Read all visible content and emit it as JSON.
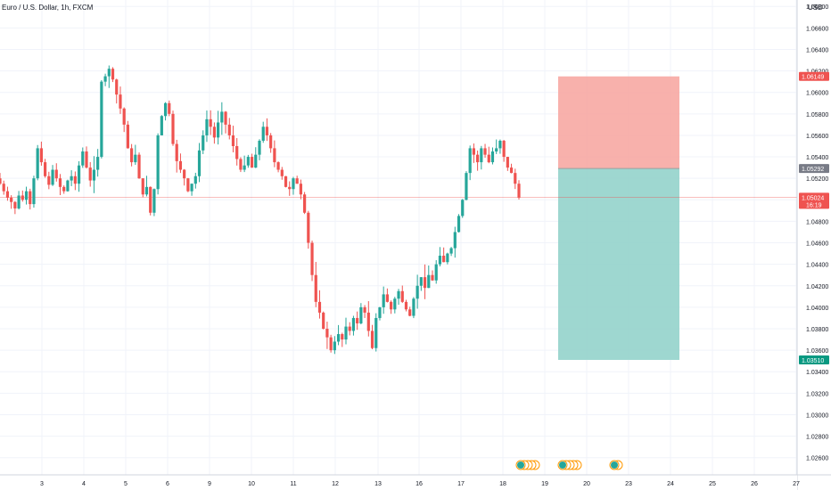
{
  "header": {
    "symbol_title": "Euro / U.S. Dollar, 1h, FXCM"
  },
  "chart_data": {
    "type": "candlestick",
    "title": "Euro / U.S. Dollar, 1h, FXCM",
    "y_unit": "USD",
    "ylim": [
      1.0244,
      1.0686
    ],
    "y_ticks": [
      "1.06800",
      "1.06600",
      "1.06400",
      "1.06200",
      "1.06000",
      "1.05800",
      "1.05600",
      "1.05400",
      "1.05200",
      "1.05000",
      "1.04800",
      "1.04600",
      "1.04400",
      "1.04200",
      "1.04000",
      "1.03800",
      "1.03600",
      "1.03400",
      "1.03200",
      "1.03000",
      "1.02800",
      "1.02600"
    ],
    "x_ticks": [
      "3",
      "4",
      "5",
      "6",
      "9",
      "10",
      "11",
      "12",
      "13",
      "16",
      "17",
      "18",
      "19",
      "20",
      "23",
      "24",
      "25",
      "26",
      "27"
    ],
    "grid": true,
    "colors": {
      "up": "#26a69a",
      "down": "#ef5350",
      "stop_zone": "#f7a39e",
      "target_zone": "#93d3cb",
      "entry_line": "#9e9e9e",
      "price_line": "#ef5350"
    },
    "candle_close_path": [
      1.0515,
      1.0508,
      1.0502,
      1.0498,
      1.0492,
      1.0504,
      1.05,
      1.0508,
      1.0496,
      1.052,
      1.0548,
      1.0535,
      1.0522,
      1.0514,
      1.0528,
      1.052,
      1.0512,
      1.0508,
      1.0518,
      1.0522,
      1.0515,
      1.0532,
      1.0545,
      1.053,
      1.0518,
      1.0528,
      1.054,
      1.061,
      1.0615,
      1.0622,
      1.0612,
      1.0598,
      1.0585,
      1.057,
      1.0548,
      1.0535,
      1.0542,
      1.052,
      1.0505,
      1.0512,
      1.0488,
      1.051,
      1.056,
      1.0578,
      1.059,
      1.058,
      1.0552,
      1.0536,
      1.0528,
      1.052,
      1.0508,
      1.0515,
      1.0522,
      1.0546,
      1.056,
      1.0575,
      1.0568,
      1.0558,
      1.0572,
      1.0582,
      1.057,
      1.056,
      1.055,
      1.0538,
      1.0528,
      1.0532,
      1.054,
      1.053,
      1.0542,
      1.0555,
      1.0568,
      1.056,
      1.0548,
      1.0535,
      1.0528,
      1.0522,
      1.0512,
      1.051,
      1.052,
      1.0515,
      1.0505,
      1.0488,
      1.046,
      1.043,
      1.0405,
      1.0395,
      1.038,
      1.0372,
      1.036,
      1.0368,
      1.0375,
      1.037,
      1.0382,
      1.0378,
      1.039,
      1.0385,
      1.04,
      1.0395,
      1.0378,
      1.0362,
      1.039,
      1.04,
      1.0412,
      1.0405,
      1.0398,
      1.0408,
      1.0415,
      1.0405,
      1.0398,
      1.0392,
      1.0408,
      1.042,
      1.0428,
      1.0418,
      1.043,
      1.0425,
      1.044,
      1.0448,
      1.0442,
      1.045,
      1.0455,
      1.047,
      1.0485,
      1.05,
      1.0525,
      1.0548,
      1.0542,
      1.0535,
      1.0548,
      1.0542,
      1.0535,
      1.0545,
      1.0548,
      1.0555,
      1.054,
      1.053,
      1.0525,
      1.0515,
      1.0502
    ],
    "annotations": {
      "entry_price": 1.05292,
      "stop_price": 1.06149,
      "target_price": 1.0351,
      "current_price": 1.05024,
      "labels": {
        "stop": "1.06149",
        "entry": "1.05292",
        "current": "1.05024",
        "countdown": "16:19",
        "target": "1.03510"
      }
    },
    "event_markers": [
      "econ-cluster-1",
      "econ-cluster-2",
      "econ-single-3"
    ]
  }
}
